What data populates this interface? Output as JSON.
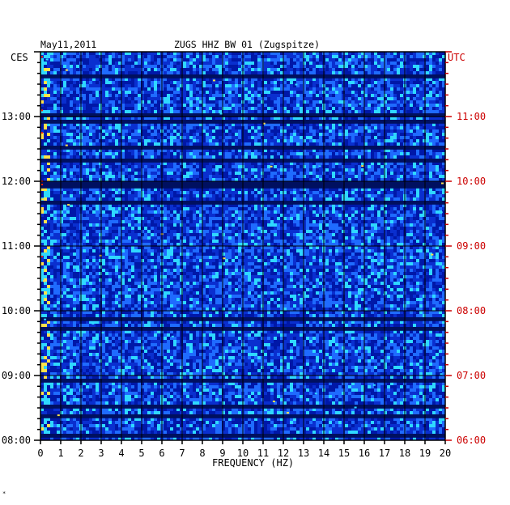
{
  "chart_data": {
    "type": "heatmap",
    "title_date": "May11,2011",
    "title": "ZUGS HHZ BW 01 (Zugspitze)",
    "left_timezone": "CES",
    "right_timezone": "UTC",
    "xlabel": "FREQUENCY (HZ)",
    "xlim": [
      0,
      20
    ],
    "x_ticks": [
      "0",
      "1",
      "2",
      "3",
      "4",
      "5",
      "6",
      "7",
      "8",
      "9",
      "10",
      "11",
      "12",
      "13",
      "14",
      "15",
      "16",
      "17",
      "18",
      "19",
      "20"
    ],
    "ylim_local_hours": [
      8,
      14
    ],
    "y_ticks_left": [
      "08:00",
      "09:00",
      "10:00",
      "11:00",
      "12:00",
      "13:00"
    ],
    "y_ticks_left_hours": [
      8,
      9,
      10,
      11,
      12,
      13
    ],
    "y_ticks_right": [
      "06:00",
      "07:00",
      "08:00",
      "09:00",
      "10:00",
      "11:00"
    ],
    "y_ticks_right_hours": [
      8,
      9,
      10,
      11,
      12,
      13
    ],
    "colors": {
      "background": "#0a2fcf",
      "low": "#0018a8",
      "mid": "#1f6bff",
      "high": "#2fd8ff",
      "peak_yellow": "#ffe14a",
      "peak_red": "#ff2a00",
      "dark_band": "#001060",
      "grid": "#000000",
      "utc_label": "#cc0000"
    }
  },
  "corner_mark": "*"
}
